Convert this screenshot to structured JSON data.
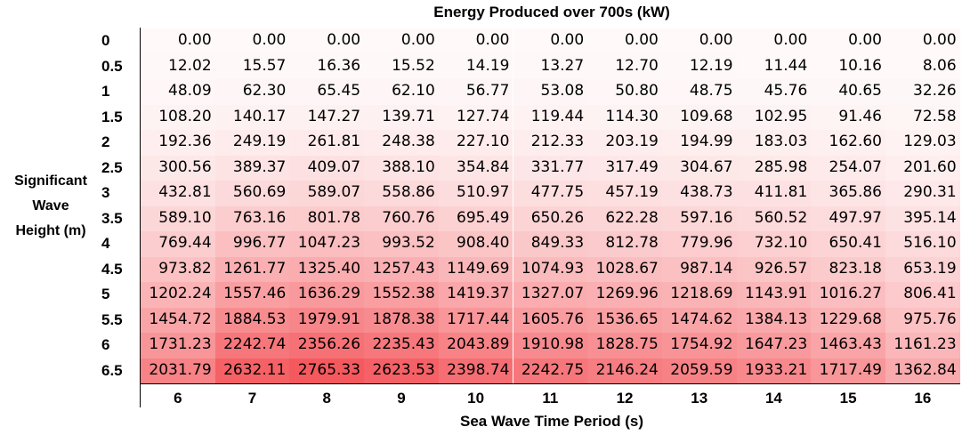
{
  "chart_data": {
    "type": "heatmap",
    "title": "Energy Produced over 700s (kW)",
    "xlabel": "Sea Wave Time Period (s)",
    "ylabel": [
      "Significant",
      "Wave",
      "Height (m)"
    ],
    "x_labels": [
      "6",
      "7",
      "8",
      "9",
      "10",
      "11",
      "12",
      "13",
      "14",
      "15",
      "16"
    ],
    "y_labels": [
      "0",
      "0.5",
      "1",
      "1.5",
      "2",
      "2.5",
      "3",
      "3.5",
      "4",
      "4.5",
      "5",
      "5.5",
      "6",
      "6.5"
    ],
    "colorscale": {
      "low": "#ffffff",
      "high": "#f4595e"
    },
    "values": [
      [
        "0.00",
        "0.00",
        "0.00",
        "0.00",
        "0.00",
        "0.00",
        "0.00",
        "0.00",
        "0.00",
        "0.00",
        "0.00"
      ],
      [
        "12.02",
        "15.57",
        "16.36",
        "15.52",
        "14.19",
        "13.27",
        "12.70",
        "12.19",
        "11.44",
        "10.16",
        "8.06"
      ],
      [
        "48.09",
        "62.30",
        "65.45",
        "62.10",
        "56.77",
        "53.08",
        "50.80",
        "48.75",
        "45.76",
        "40.65",
        "32.26"
      ],
      [
        "108.20",
        "140.17",
        "147.27",
        "139.71",
        "127.74",
        "119.44",
        "114.30",
        "109.68",
        "102.95",
        "91.46",
        "72.58"
      ],
      [
        "192.36",
        "249.19",
        "261.81",
        "248.38",
        "227.10",
        "212.33",
        "203.19",
        "194.99",
        "183.03",
        "162.60",
        "129.03"
      ],
      [
        "300.56",
        "389.37",
        "409.07",
        "388.10",
        "354.84",
        "331.77",
        "317.49",
        "304.67",
        "285.98",
        "254.07",
        "201.60"
      ],
      [
        "432.81",
        "560.69",
        "589.07",
        "558.86",
        "510.97",
        "477.75",
        "457.19",
        "438.73",
        "411.81",
        "365.86",
        "290.31"
      ],
      [
        "589.10",
        "763.16",
        "801.78",
        "760.76",
        "695.49",
        "650.26",
        "622.28",
        "597.16",
        "560.52",
        "497.97",
        "395.14"
      ],
      [
        "769.44",
        "996.77",
        "1047.23",
        "993.52",
        "908.40",
        "849.33",
        "812.78",
        "779.96",
        "732.10",
        "650.41",
        "516.10"
      ],
      [
        "973.82",
        "1261.77",
        "1325.40",
        "1257.43",
        "1149.69",
        "1074.93",
        "1028.67",
        "987.14",
        "926.57",
        "823.18",
        "653.19"
      ],
      [
        "1202.24",
        "1557.46",
        "1636.29",
        "1552.38",
        "1419.37",
        "1327.07",
        "1269.96",
        "1218.69",
        "1143.91",
        "1016.27",
        "806.41"
      ],
      [
        "1454.72",
        "1884.53",
        "1979.91",
        "1878.38",
        "1717.44",
        "1605.76",
        "1536.65",
        "1474.62",
        "1384.13",
        "1229.68",
        "975.76"
      ],
      [
        "1731.23",
        "2242.74",
        "2356.26",
        "2235.43",
        "2043.89",
        "1910.98",
        "1828.75",
        "1754.92",
        "1647.23",
        "1463.43",
        "1161.23"
      ],
      [
        "2031.79",
        "2632.11",
        "2765.33",
        "2623.53",
        "2398.74",
        "2242.75",
        "2146.24",
        "2059.59",
        "1933.21",
        "1717.49",
        "1362.84"
      ]
    ]
  }
}
